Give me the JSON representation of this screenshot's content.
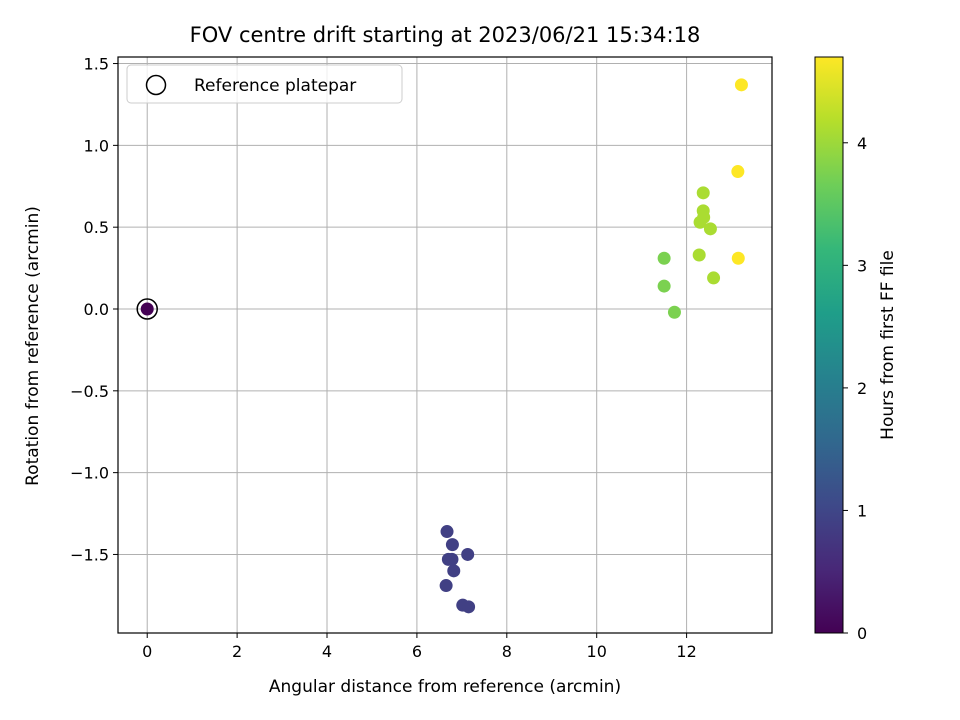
{
  "chart_data": {
    "type": "scatter",
    "title": "FOV centre drift starting at 2023/06/21 15:34:18",
    "xlabel": "Angular distance from reference (arcmin)",
    "ylabel": "Rotation from reference (arcmin)",
    "xlim": [
      -0.65,
      13.9
    ],
    "ylim": [
      -1.98,
      1.54
    ],
    "xticks": [
      "0",
      "2",
      "4",
      "6",
      "8",
      "10",
      "12"
    ],
    "xtick_values": [
      0,
      2,
      4,
      6,
      8,
      10,
      12
    ],
    "yticks": [
      "1.5",
      "1.0",
      "0.5",
      "0.0",
      "−0.5",
      "−1.0",
      "−1.5"
    ],
    "ytick_values": [
      1.5,
      1.0,
      0.5,
      0.0,
      -0.5,
      -1.0,
      -1.5
    ],
    "grid": true,
    "legend": {
      "position": "top-left",
      "entries": [
        "Reference platepar"
      ]
    },
    "reference": {
      "x": 0,
      "y": 0
    },
    "colorbar": {
      "label": "Hours from first FF file",
      "range": [
        0,
        4.7
      ],
      "ticks": [
        "0",
        "1",
        "2",
        "3",
        "4"
      ],
      "tick_values": [
        0,
        1,
        2,
        3,
        4
      ],
      "colormap": [
        "#440154",
        "#482878",
        "#3e4989",
        "#31688e",
        "#26828e",
        "#1f9e89",
        "#35b779",
        "#6ece58",
        "#b5de2b",
        "#fde725"
      ]
    },
    "points": [
      {
        "x": 0.0,
        "y": 0.0,
        "c": 0.0
      },
      {
        "x": 6.67,
        "y": -1.36,
        "c": 0.9
      },
      {
        "x": 6.79,
        "y": -1.44,
        "c": 0.9
      },
      {
        "x": 6.7,
        "y": -1.53,
        "c": 0.9
      },
      {
        "x": 6.78,
        "y": -1.53,
        "c": 0.9
      },
      {
        "x": 7.13,
        "y": -1.5,
        "c": 0.9
      },
      {
        "x": 6.82,
        "y": -1.6,
        "c": 0.9
      },
      {
        "x": 6.65,
        "y": -1.69,
        "c": 0.9
      },
      {
        "x": 7.02,
        "y": -1.81,
        "c": 0.9
      },
      {
        "x": 7.15,
        "y": -1.82,
        "c": 0.9
      },
      {
        "x": 11.5,
        "y": 0.31,
        "c": 3.75
      },
      {
        "x": 11.5,
        "y": 0.14,
        "c": 3.75
      },
      {
        "x": 11.73,
        "y": -0.02,
        "c": 3.75
      },
      {
        "x": 12.37,
        "y": 0.71,
        "c": 4.1
      },
      {
        "x": 12.37,
        "y": 0.6,
        "c": 4.1
      },
      {
        "x": 12.38,
        "y": 0.56,
        "c": 4.1
      },
      {
        "x": 12.3,
        "y": 0.53,
        "c": 4.1
      },
      {
        "x": 12.53,
        "y": 0.49,
        "c": 4.1
      },
      {
        "x": 12.28,
        "y": 0.33,
        "c": 4.1
      },
      {
        "x": 12.6,
        "y": 0.19,
        "c": 4.1
      },
      {
        "x": 13.22,
        "y": 1.37,
        "c": 4.7
      },
      {
        "x": 13.14,
        "y": 0.84,
        "c": 4.7
      },
      {
        "x": 13.15,
        "y": 0.31,
        "c": 4.7
      }
    ]
  }
}
